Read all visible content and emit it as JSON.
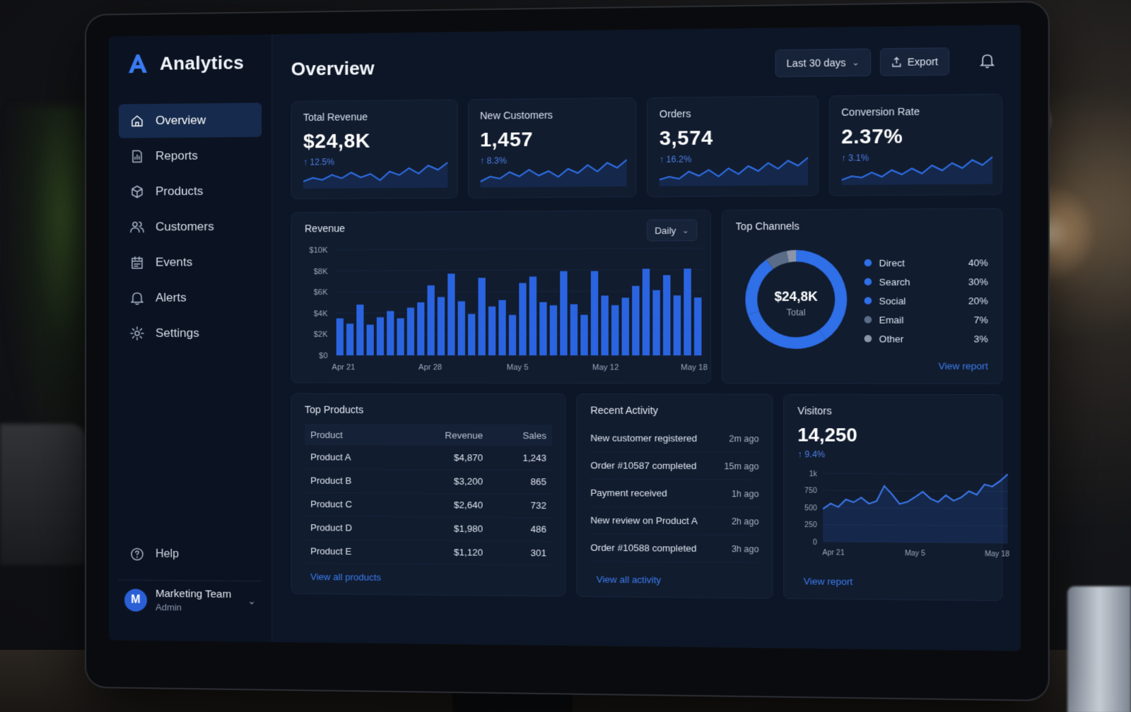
{
  "brand": {
    "name": "Analytics"
  },
  "nav": [
    {
      "label": "Overview",
      "icon": "home-icon",
      "active": true
    },
    {
      "label": "Reports",
      "icon": "report-icon"
    },
    {
      "label": "Products",
      "icon": "box-icon"
    },
    {
      "label": "Customers",
      "icon": "users-icon"
    },
    {
      "label": "Events",
      "icon": "calendar-icon"
    },
    {
      "label": "Alerts",
      "icon": "bell-icon"
    },
    {
      "label": "Settings",
      "icon": "gear-icon"
    }
  ],
  "sidebar_bottom": {
    "help": "Help",
    "team_name": "Marketing Team",
    "team_role": "Admin",
    "avatar_initial": "M"
  },
  "header": {
    "title": "Overview",
    "range": "Last 30 days",
    "export": "Export"
  },
  "kpis": [
    {
      "label": "Total Revenue",
      "value": "$24,8K",
      "delta": "↑ 12.5%"
    },
    {
      "label": "New Customers",
      "value": "1,457",
      "delta": "↑ 8.3%"
    },
    {
      "label": "Orders",
      "value": "3,574",
      "delta": "↑ 16.2%"
    },
    {
      "label": "Conversion Rate",
      "value": "2.37%",
      "delta": "↑ 3.1%"
    }
  ],
  "revenue": {
    "title": "Revenue",
    "granularity": "Daily"
  },
  "channels": {
    "title": "Top Channels",
    "center_value": "$24,8K",
    "center_label": "Total",
    "link": "View report",
    "items": [
      {
        "name": "Direct",
        "pct": "40%",
        "value": 40,
        "color": "#2f6fe8"
      },
      {
        "name": "Search",
        "pct": "30%",
        "value": 30,
        "color": "#2f6fe8"
      },
      {
        "name": "Social",
        "pct": "20%",
        "value": 20,
        "color": "#2f6fe8"
      },
      {
        "name": "Email",
        "pct": "7%",
        "value": 7,
        "color": "#5b6c88"
      },
      {
        "name": "Other",
        "pct": "3%",
        "value": 3,
        "color": "#8a95a8"
      }
    ]
  },
  "top_products": {
    "title": "Top Products",
    "columns": [
      "Product",
      "Revenue",
      "Sales"
    ],
    "rows": [
      [
        "Product A",
        "$4,870",
        "1,243"
      ],
      [
        "Product B",
        "$3,200",
        "865"
      ],
      [
        "Product C",
        "$2,640",
        "732"
      ],
      [
        "Product D",
        "$1,980",
        "486"
      ],
      [
        "Product E",
        "$1,120",
        "301"
      ]
    ],
    "link": "View all products"
  },
  "activity": {
    "title": "Recent Activity",
    "items": [
      {
        "text": "New customer registered",
        "time": "2m ago"
      },
      {
        "text": "Order #10587 completed",
        "time": "15m ago"
      },
      {
        "text": "Payment received",
        "time": "1h ago"
      },
      {
        "text": "New review on Product A",
        "time": "2h ago"
      },
      {
        "text": "Order #10588 completed",
        "time": "3h ago"
      }
    ],
    "link": "View all activity"
  },
  "visitors": {
    "title": "Visitors",
    "value": "14,250",
    "delta": "↑ 9.4%",
    "link": "View report"
  },
  "chart_data": [
    {
      "type": "bar",
      "title": "Revenue",
      "ylim": [
        0,
        10000
      ],
      "yticks": [
        "$10K",
        "$8K",
        "$6K",
        "$4K",
        "$2K",
        "$0"
      ],
      "xticks": [
        "Apr 21",
        "Apr 28",
        "May 5",
        "May 12",
        "May 18"
      ],
      "values": [
        3500,
        3000,
        4800,
        2900,
        3600,
        4200,
        3500,
        4500,
        5000,
        6600,
        5500,
        7700,
        5100,
        3900,
        7300,
        4600,
        5200,
        3800,
        6800,
        7400,
        5000,
        4700,
        7900,
        4800,
        3800,
        7900,
        5600,
        4700,
        5400,
        6500,
        8100,
        6100,
        7500,
        5600,
        8100,
        5400
      ],
      "color": "#2a64e0"
    },
    {
      "type": "pie",
      "title": "Top Channels",
      "categories": [
        "Direct",
        "Search",
        "Social",
        "Email",
        "Other"
      ],
      "values": [
        40,
        30,
        20,
        7,
        3
      ]
    },
    {
      "type": "line",
      "title": "Visitors",
      "yticks": [
        "1k",
        "750",
        "500",
        "250",
        "0"
      ],
      "xticks": [
        "Apr 21",
        "May 5",
        "May 18"
      ],
      "ylim": [
        0,
        1000
      ],
      "values": [
        480,
        560,
        510,
        620,
        580,
        650,
        560,
        600,
        820,
        700,
        560,
        590,
        660,
        740,
        640,
        590,
        690,
        610,
        660,
        750,
        700,
        850,
        820,
        900,
        1000
      ],
      "color": "#3b78ec"
    }
  ],
  "sparklines": [
    [
      20,
      30,
      24,
      38,
      28,
      44,
      30,
      40,
      22,
      46,
      36,
      55,
      40,
      62,
      50,
      70
    ],
    [
      16,
      30,
      24,
      42,
      30,
      48,
      32,
      44,
      28,
      50,
      38,
      60,
      42,
      66,
      52,
      74
    ],
    [
      18,
      26,
      20,
      40,
      28,
      44,
      26,
      48,
      32,
      54,
      40,
      62,
      46,
      68,
      54,
      76
    ],
    [
      14,
      24,
      20,
      34,
      22,
      40,
      28,
      44,
      30,
      52,
      38,
      58,
      44,
      66,
      52,
      74
    ]
  ]
}
